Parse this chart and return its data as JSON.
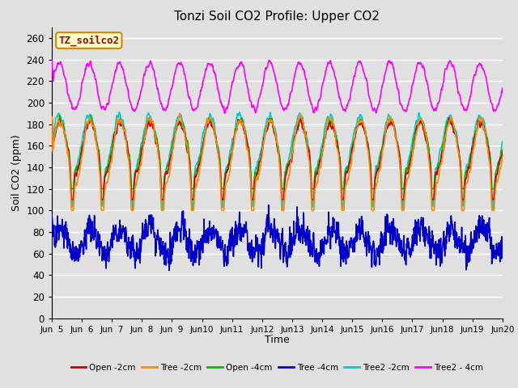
{
  "title": "Tonzi Soil CO2 Profile: Upper CO2",
  "ylabel": "Soil CO2 (ppm)",
  "xlabel": "Time",
  "ylim": [
    0,
    270
  ],
  "yticks": [
    0,
    20,
    40,
    60,
    80,
    100,
    120,
    140,
    160,
    180,
    200,
    220,
    240,
    260
  ],
  "bg_color": "#e0e0e0",
  "grid_color": "#ffffff",
  "annotation_text": "TZ_soilco2",
  "annotation_bg": "#ffffcc",
  "annotation_edge": "#cc8800",
  "annotation_text_color": "#aa0000",
  "series": {
    "Open -2cm": {
      "color": "#cc0000",
      "lw": 1.2
    },
    "Tree -2cm": {
      "color": "#ff8800",
      "lw": 1.2
    },
    "Open -4cm": {
      "color": "#00bb00",
      "lw": 1.2
    },
    "Tree -4cm": {
      "color": "#0000cc",
      "lw": 1.2
    },
    "Tree2 -2cm": {
      "color": "#00cccc",
      "lw": 1.2
    },
    "Tree2 - 4cm": {
      "color": "#ff00ff",
      "lw": 1.2
    }
  },
  "n_days": 15,
  "start_day": 5,
  "points_per_day": 96,
  "seed": 7
}
